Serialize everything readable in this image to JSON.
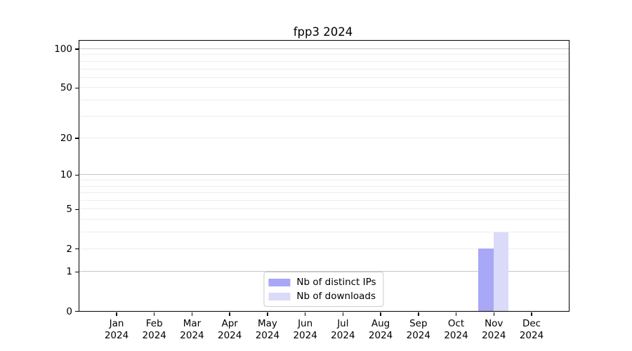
{
  "chart_data": {
    "type": "bar",
    "title": "fpp3 2024",
    "categories": [
      "Jan",
      "Feb",
      "Mar",
      "Apr",
      "May",
      "Jun",
      "Jul",
      "Aug",
      "Sep",
      "Oct",
      "Nov",
      "Dec"
    ],
    "year_label": "2024",
    "series": [
      {
        "name": "Nb of distinct IPs",
        "color": "#a8a8f6",
        "values": [
          0,
          0,
          0,
          0,
          0,
          0,
          0,
          0,
          0,
          0,
          2,
          0
        ]
      },
      {
        "name": "Nb of downloads",
        "color": "#dbdaf8",
        "values": [
          0,
          0,
          0,
          0,
          0,
          0,
          0,
          0,
          0,
          0,
          3,
          0
        ]
      }
    ],
    "xlabel": "",
    "ylabel": "",
    "yscale": "log1p",
    "ylim": [
      0,
      100
    ],
    "yticks": [
      0,
      1,
      2,
      5,
      10,
      20,
      50,
      100
    ],
    "grid": {
      "minor_values": [
        2,
        3,
        4,
        5,
        6,
        7,
        8,
        9,
        20,
        30,
        40,
        50,
        60,
        70,
        80,
        90
      ],
      "major_values": [
        1,
        10,
        100
      ],
      "minor_color": "#ededed",
      "major_color": "#c6c6c6"
    },
    "legend": {
      "position": "lower center"
    },
    "colors": {
      "spine": "#000000",
      "legend_border": "#cccccc",
      "background": "#ffffff"
    }
  }
}
